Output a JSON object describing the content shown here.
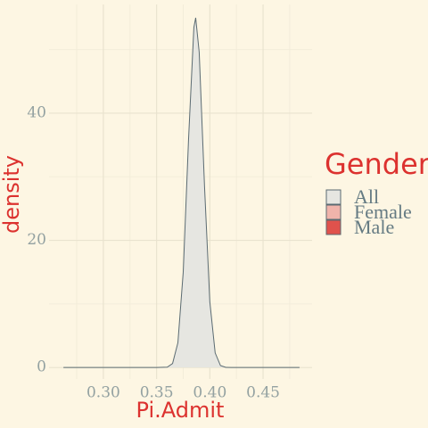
{
  "chart_data": {
    "type": "density",
    "x_label": "Pi.Admit",
    "y_label": "density",
    "legend_title": "Gender",
    "x": [
      0.2625,
      0.35,
      0.36,
      0.365,
      0.37,
      0.375,
      0.38,
      0.385,
      0.3867,
      0.39,
      0.395,
      0.4,
      0.405,
      0.41,
      0.415,
      0.42,
      0.4842
    ],
    "series": [
      {
        "name": "All",
        "color": "#e6e6e1",
        "line_color": "#5b6b72",
        "values": [
          0,
          0,
          0.06,
          0.63,
          3.9,
          15,
          35.9,
          53.5,
          55,
          49.6,
          28.5,
          10.3,
          2.3,
          0.3,
          0.03,
          0,
          0
        ]
      },
      {
        "name": "Female",
        "color": "#f0b4ab",
        "line_color": "#5b6b72",
        "values": [
          null,
          null,
          null,
          null,
          null,
          null,
          null,
          null,
          null,
          null,
          null,
          null,
          null,
          null,
          null,
          null,
          null
        ]
      },
      {
        "name": "Male",
        "color": "#e0524c",
        "line_color": "#5b6b72",
        "values": [
          null,
          null,
          null,
          null,
          null,
          null,
          null,
          null,
          null,
          null,
          null,
          null,
          null,
          null,
          null,
          null,
          null
        ]
      }
    ],
    "xlim": [
      0.249,
      0.496
    ],
    "ylim": [
      -1.8,
      57.1
    ],
    "xticks": [
      {
        "value": 0.3,
        "label": "0.30"
      },
      0.35,
      {
        "value": 0.4,
        "label": "0.40"
      },
      0.45
    ],
    "yticks": [
      0,
      20,
      40
    ],
    "xminor": [
      0.275,
      0.325,
      0.375,
      0.425,
      0.475
    ],
    "yminor": [
      10,
      30,
      50
    ],
    "grid": true
  }
}
